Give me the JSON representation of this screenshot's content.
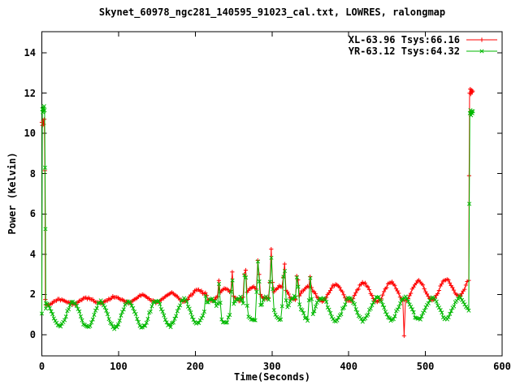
{
  "title": "Skynet_60978_ngc281_140595_91023_cal.txt, LOWRES, ralongmap",
  "axes": {
    "x": {
      "label": "Time(Seconds)",
      "axis_min": 0,
      "axis_max": 600,
      "ticks": [
        0,
        100,
        200,
        300,
        400,
        500,
        600
      ]
    },
    "y": {
      "label": "Power (Kelvin)",
      "axis_min": -1.05,
      "axis_max": 15.05,
      "ticks": [
        0,
        2,
        4,
        6,
        8,
        10,
        12,
        14
      ]
    }
  },
  "legend": {
    "position": "top-right",
    "entries": [
      {
        "label": "XL-63.96 Tsys:66.16",
        "color": "#ff0000",
        "marker": "plus"
      },
      {
        "label": "YR-63.12 Tsys:64.32",
        "color": "#00b800",
        "marker": "cross"
      }
    ]
  },
  "colors": {
    "axis": "#000000",
    "background": "#ffffff",
    "xl_series": "#ff0000",
    "yr_series": "#00b800"
  },
  "chart_data": {
    "type": "line",
    "title": "Skynet_60978_ngc281_140595_91023_cal.txt, LOWRES, ralongmap",
    "xlabel": "Time(Seconds)",
    "ylabel": "Power (Kelvin)",
    "xlim": [
      0,
      600
    ],
    "ylim": [
      -1.05,
      15.05
    ],
    "grid": false,
    "legend_position": "top-right inside",
    "series": [
      {
        "name": "XL-63.96 Tsys:66.16",
        "color": "#ff0000",
        "marker": "plus",
        "start_cal_points": [
          [
            0,
            10.55
          ],
          [
            0.8,
            10.4
          ],
          [
            1.6,
            10.65
          ],
          [
            2.4,
            10.45
          ],
          [
            3.2,
            10.7
          ],
          [
            4,
            8.15
          ],
          [
            4.6,
            1.75
          ]
        ],
        "end_cal_points": [
          [
            556.5,
            2.7
          ],
          [
            557,
            7.9
          ],
          [
            557.6,
            12.0
          ],
          [
            558.4,
            12.2
          ],
          [
            559.2,
            11.95
          ],
          [
            560,
            12.15
          ],
          [
            560.8,
            12.05
          ],
          [
            561.6,
            12.1
          ]
        ],
        "scan": {
          "t_start": 5,
          "t_end": 556,
          "step": 1.75,
          "baseline_keypoints": [
            [
              5,
              1.6
            ],
            [
              100,
              1.75
            ],
            [
              150,
              1.8
            ],
            [
              200,
              1.95
            ],
            [
              250,
              2.0
            ],
            [
              300,
              2.1
            ],
            [
              350,
              2.05
            ],
            [
              400,
              2.1
            ],
            [
              450,
              2.1
            ],
            [
              500,
              2.2
            ],
            [
              540,
              2.3
            ],
            [
              556,
              2.6
            ]
          ],
          "osc_amplitude_keypoints": [
            [
              5,
              0.12
            ],
            [
              100,
              0.15
            ],
            [
              150,
              0.18
            ],
            [
              200,
              0.28
            ],
            [
              250,
              0.3
            ],
            [
              300,
              0.32
            ],
            [
              350,
              0.35
            ],
            [
              400,
              0.45
            ],
            [
              450,
              0.5
            ],
            [
              556,
              0.45
            ]
          ],
          "osc_period": 36,
          "osc_phase_t": 23,
          "osc_sign": 1,
          "noise": 0.05
        },
        "source_spikes": [
          [
            214,
            2.5
          ],
          [
            231,
            2.85
          ],
          [
            248,
            3.3
          ],
          [
            265,
            3.85
          ],
          [
            282,
            4.15
          ],
          [
            299,
            4.25
          ],
          [
            316,
            3.95
          ],
          [
            333,
            3.5
          ],
          [
            350,
            3.05
          ]
        ],
        "spike_half_width": 4.5,
        "outlier_dips": [
          [
            472,
            -0.05
          ]
        ]
      },
      {
        "name": "YR-63.12 Tsys:64.32",
        "color": "#00b800",
        "marker": "cross",
        "start_cal_points": [
          [
            0,
            1.05
          ],
          [
            0.6,
            11.2
          ],
          [
            1.2,
            11.05
          ],
          [
            1.8,
            11.3
          ],
          [
            2.4,
            11.1
          ],
          [
            3,
            11.35
          ],
          [
            3.6,
            11.15
          ],
          [
            4.2,
            8.3
          ],
          [
            4.7,
            5.25
          ],
          [
            5.2,
            1.3
          ]
        ],
        "end_cal_points": [
          [
            556.5,
            1.2
          ],
          [
            557.2,
            6.5
          ],
          [
            557.9,
            11.0
          ],
          [
            558.7,
            11.15
          ],
          [
            559.5,
            10.9
          ],
          [
            560.3,
            11.1
          ],
          [
            561.1,
            11.0
          ],
          [
            561.9,
            11.1
          ]
        ],
        "scan": {
          "t_start": 5.2,
          "t_end": 556,
          "step": 1.75,
          "baseline_keypoints": [
            [
              5,
              1.0
            ],
            [
              100,
              1.0
            ],
            [
              150,
              1.05
            ],
            [
              200,
              1.15
            ],
            [
              250,
              1.25
            ],
            [
              300,
              1.3
            ],
            [
              350,
              1.3
            ],
            [
              400,
              1.25
            ],
            [
              450,
              1.3
            ],
            [
              500,
              1.3
            ],
            [
              556,
              1.35
            ]
          ],
          "osc_amplitude_keypoints": [
            [
              5,
              0.6
            ],
            [
              50,
              0.65
            ],
            [
              150,
              0.65
            ],
            [
              250,
              0.6
            ],
            [
              350,
              0.55
            ],
            [
              450,
              0.55
            ],
            [
              556,
              0.5
            ]
          ],
          "osc_period": 36,
          "osc_phase_t": 23,
          "osc_sign": -1,
          "noise": 0.08
        },
        "source_spikes": [
          [
            214,
            2.2
          ],
          [
            231,
            2.55
          ],
          [
            248,
            3.0
          ],
          [
            265,
            3.6
          ],
          [
            282,
            3.9
          ],
          [
            299,
            4.0
          ],
          [
            316,
            3.75
          ],
          [
            333,
            3.25
          ],
          [
            350,
            2.85
          ]
        ],
        "spike_half_width": 4.5,
        "outlier_dips": []
      }
    ]
  }
}
